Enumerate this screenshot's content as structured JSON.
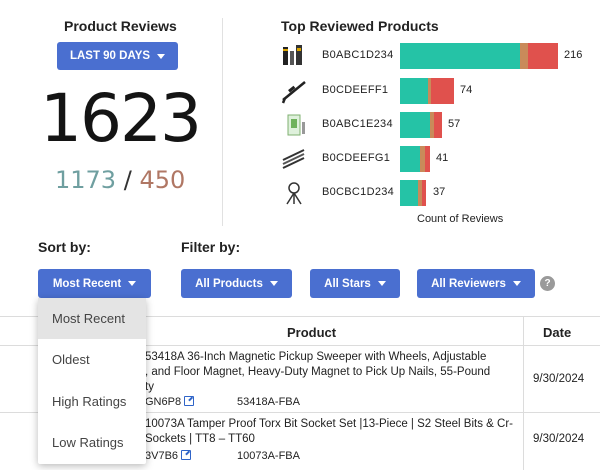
{
  "summary": {
    "title": "Product Reviews",
    "range_label": "LAST 90 DAYS",
    "total": "1623",
    "positive": "1173",
    "separator": "/",
    "negative": "450"
  },
  "top_products": {
    "title": "Top Reviewed Products",
    "axis_title": "Count of Reviews",
    "colors": {
      "positive": "#25c3a6",
      "neutral": "#c98a5a",
      "negative": "#e0514d"
    },
    "items": [
      {
        "asin": "B0ABC1D234",
        "count": "216",
        "icon": "battery-tools-icon"
      },
      {
        "asin": "B0CDEEFF1",
        "count": "74",
        "icon": "rifle-icon"
      },
      {
        "asin": "B0ABC1E234",
        "count": "57",
        "icon": "bottle-kit-icon"
      },
      {
        "asin": "B0CDEEFG1",
        "count": "41",
        "icon": "screwdriver-set-icon"
      },
      {
        "asin": "B0CBC1D234",
        "count": "37",
        "icon": "tripod-lamp-icon"
      }
    ]
  },
  "chart_data": {
    "type": "bar",
    "orientation": "horizontal",
    "title": "Top Reviewed Products",
    "xlabel": "Count of Reviews",
    "categories": [
      "B0ABC1D234",
      "B0CDEEFF1",
      "B0ABC1E234",
      "B0CDEEFG1",
      "B0CBC1D234"
    ],
    "values": [
      216,
      74,
      57,
      41,
      37
    ],
    "stack_segments": [
      [
        0.76,
        0.05,
        0.19
      ],
      [
        0.52,
        0.06,
        0.42
      ],
      [
        0.72,
        0.1,
        0.18
      ],
      [
        0.68,
        0.16,
        0.16
      ],
      [
        0.68,
        0.16,
        0.16
      ]
    ],
    "grid": false
  },
  "controls": {
    "sort_label": "Sort by:",
    "filter_label": "Filter by:",
    "sort_value": "Most Recent",
    "filters": [
      "All Products",
      "All Stars",
      "All Reviewers"
    ],
    "help": "?"
  },
  "sort_options": [
    "Most Recent",
    "Oldest",
    "High Ratings",
    "Low Ratings"
  ],
  "table": {
    "headers": {
      "product": "Product",
      "date": "Date"
    },
    "rows": [
      {
        "lines": [
          "53418A 36-Inch Magnetic Pickup Sweeper with Wheels, Adjustable",
          ", and Floor Magnet, Heavy-Duty Magnet to Pick Up Nails, 55-Pound",
          "ty"
        ],
        "code": "GN6P8",
        "sku": "53418A-FBA",
        "date": "9/30/2024"
      },
      {
        "lines": [
          "10073A Tamper Proof Torx Bit Socket Set |13-Piece | S2 Steel Bits & Cr-",
          " Sockets | TT8 – TT60"
        ],
        "code": "3V7B6",
        "sku": "10073A-FBA",
        "date": "9/30/2024"
      }
    ]
  }
}
